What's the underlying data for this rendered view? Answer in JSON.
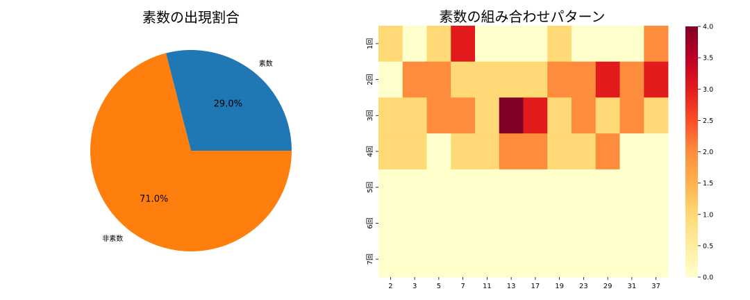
{
  "chart_data": [
    {
      "type": "pie",
      "title": "素数の出現割合",
      "slices": [
        {
          "label": "素数",
          "value": 29.0,
          "pct_label": "29.0%",
          "color": "#1f77b4"
        },
        {
          "label": "非素数",
          "value": 71.0,
          "pct_label": "71.0%",
          "color": "#ff7f0e"
        }
      ],
      "start_angle_deg": 0,
      "direction": "counterclockwise"
    },
    {
      "type": "heatmap",
      "title": "素数の組み合わせパターン",
      "x_categories": [
        "2",
        "3",
        "5",
        "7",
        "11",
        "13",
        "17",
        "19",
        "23",
        "29",
        "31",
        "37"
      ],
      "y_categories": [
        "1回",
        "2回",
        "3回",
        "4回",
        "5回",
        "6回",
        "7回"
      ],
      "values": [
        [
          1,
          0,
          1,
          3,
          0,
          0,
          0,
          1,
          0,
          0,
          0,
          2
        ],
        [
          0,
          2,
          2,
          1,
          1,
          1,
          1,
          2,
          2,
          3,
          2,
          3
        ],
        [
          1,
          1,
          2,
          2,
          1,
          4,
          3,
          1,
          2,
          1,
          2,
          1
        ],
        [
          1,
          1,
          0,
          1,
          1,
          2,
          2,
          1,
          1,
          2,
          0,
          0
        ],
        [
          0,
          0,
          0,
          0,
          0,
          0,
          0,
          0,
          0,
          0,
          0,
          0
        ],
        [
          0,
          0,
          0,
          0,
          0,
          0,
          0,
          0,
          0,
          0,
          0,
          0
        ],
        [
          0,
          0,
          0,
          0,
          0,
          0,
          0,
          0,
          0,
          0,
          0,
          0
        ]
      ],
      "colormap": "YlOrRd",
      "colormap_stops": [
        "#ffffcc",
        "#ffeda0",
        "#fed976",
        "#feb24c",
        "#fd8d3c",
        "#fc4e2a",
        "#e31a1c",
        "#bd0026",
        "#800026"
      ],
      "vmin": 0,
      "vmax": 4,
      "colorbar_ticks": [
        "0.0",
        "0.5",
        "1.0",
        "1.5",
        "2.0",
        "2.5",
        "3.0",
        "3.5",
        "4.0"
      ]
    }
  ]
}
